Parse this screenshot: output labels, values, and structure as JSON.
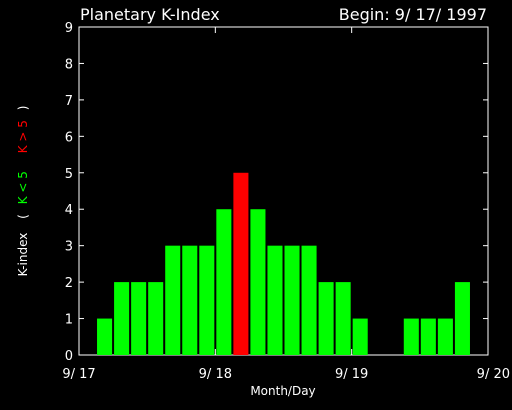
{
  "chart_data": {
    "type": "bar",
    "title": "Planetary K-Index",
    "subtitle": "Begin: 9/ 17/ 1997",
    "xlabel": "Month/Day",
    "ylabel": {
      "prefix": "K-index",
      "open": "(",
      "low_label": "K < 5",
      "high_label": "K > 5",
      "close": ")"
    },
    "ylim": [
      0,
      9
    ],
    "yticks": [
      "0",
      "1",
      "2",
      "3",
      "4",
      "5",
      "6",
      "7",
      "8",
      "9"
    ],
    "xlim": [
      0,
      3
    ],
    "xticks": [
      {
        "label": "9/ 17",
        "day": 0
      },
      {
        "label": "9/ 18",
        "day": 1
      },
      {
        "label": "9/ 19",
        "day": 2
      },
      {
        "label": "9/ 20",
        "day": 3
      }
    ],
    "threshold": 5,
    "colors": {
      "low": "#00ff00",
      "high": "#ff0000",
      "axes": "#ffffff",
      "background": "#000000"
    },
    "interval_hours": 3,
    "values": [
      null,
      1,
      2,
      2,
      2,
      3,
      3,
      3,
      4,
      5,
      4,
      3,
      3,
      3,
      2,
      2,
      1,
      null,
      null,
      1,
      1,
      1,
      2,
      null
    ]
  }
}
